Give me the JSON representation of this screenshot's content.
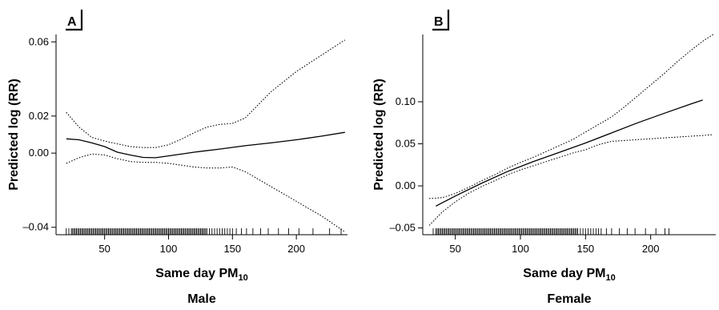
{
  "chart_data": [
    {
      "type": "line",
      "panel_label": "A",
      "caption": "Male",
      "xlabel": "Same day PM",
      "xlabel_sub": "10",
      "ylabel": "Predicted log (RR)",
      "xlim": [
        12,
        240
      ],
      "ylim": [
        -0.044,
        0.064
      ],
      "xticks": [
        50,
        100,
        150,
        200
      ],
      "yticks": [
        -0.04,
        0.0,
        0.02,
        0.06
      ],
      "ytick_labels": [
        "–0.04",
        "0.00",
        "0.02",
        "0.06"
      ],
      "series": [
        {
          "role": "estimate",
          "style": "solid",
          "x": [
            20,
            30,
            40,
            50,
            60,
            70,
            80,
            90,
            100,
            120,
            140,
            160,
            180,
            200,
            220,
            238
          ],
          "y": [
            0.0077,
            0.0072,
            0.0055,
            0.0035,
            0.0005,
            -0.001,
            -0.0023,
            -0.0025,
            -0.0015,
            0.0005,
            0.0022,
            0.004,
            0.0055,
            0.0072,
            0.0092,
            0.0112
          ]
        },
        {
          "role": "upper-bound",
          "style": "dotted",
          "x": [
            20,
            30,
            40,
            50,
            60,
            70,
            80,
            90,
            100,
            110,
            120,
            130,
            140,
            150,
            160,
            180,
            200,
            220,
            238
          ],
          "y": [
            0.022,
            0.014,
            0.0085,
            0.0065,
            0.005,
            0.0035,
            0.003,
            0.003,
            0.0045,
            0.0075,
            0.011,
            0.014,
            0.0155,
            0.016,
            0.019,
            0.033,
            0.044,
            0.053,
            0.061
          ]
        },
        {
          "role": "lower-bound",
          "style": "dotted",
          "x": [
            20,
            30,
            40,
            50,
            60,
            70,
            80,
            90,
            100,
            110,
            120,
            130,
            140,
            150,
            160,
            180,
            200,
            220,
            238
          ],
          "y": [
            -0.0055,
            -0.0025,
            -0.0005,
            -0.001,
            -0.003,
            -0.0045,
            -0.005,
            -0.005,
            -0.0055,
            -0.0065,
            -0.0075,
            -0.008,
            -0.008,
            -0.0075,
            -0.01,
            -0.018,
            -0.026,
            -0.034,
            -0.0425
          ]
        }
      ],
      "rug_x": [
        20,
        22,
        24,
        25,
        26,
        27,
        28,
        29,
        30,
        31,
        32,
        33,
        34,
        35,
        36,
        37,
        38,
        39,
        40,
        41,
        42,
        43,
        44,
        45,
        46,
        47,
        48,
        49,
        50,
        51,
        52,
        53,
        54,
        55,
        56,
        57,
        58,
        59,
        60,
        61,
        62,
        63,
        64,
        65,
        66,
        67,
        68,
        69,
        70,
        71,
        72,
        73,
        74,
        75,
        76,
        77,
        78,
        79,
        80,
        81,
        82,
        83,
        84,
        85,
        86,
        87,
        88,
        89,
        90,
        91,
        92,
        93,
        94,
        95,
        96,
        97,
        98,
        99,
        100,
        101,
        102,
        103,
        104,
        105,
        106,
        107,
        108,
        109,
        110,
        111,
        112,
        113,
        114,
        115,
        116,
        117,
        118,
        119,
        120,
        121,
        122,
        123,
        124,
        125,
        126,
        127,
        128,
        129,
        130,
        132,
        134,
        136,
        138,
        140,
        142,
        144,
        146,
        148,
        150,
        153,
        157,
        161,
        166,
        172,
        178,
        186,
        194,
        202,
        213,
        226,
        235
      ]
    },
    {
      "type": "line",
      "panel_label": "B",
      "caption": "Female",
      "xlabel": "Same day PM",
      "xlabel_sub": "10",
      "ylabel": "Predicted log (RR)",
      "xlim": [
        25,
        250
      ],
      "ylim": [
        -0.058,
        0.18
      ],
      "xticks": [
        50,
        100,
        150,
        200
      ],
      "yticks": [
        -0.05,
        0.0,
        0.05,
        0.1
      ],
      "ytick_labels": [
        "–0.05",
        "0.00",
        "0.05",
        "0.10"
      ],
      "series": [
        {
          "role": "estimate",
          "style": "solid",
          "x": [
            35,
            50,
            70,
            90,
            110,
            130,
            150,
            170,
            190,
            210,
            230,
            240
          ],
          "y": [
            -0.024,
            -0.012,
            0.003,
            0.017,
            0.029,
            0.04,
            0.051,
            0.063,
            0.075,
            0.086,
            0.097,
            0.102
          ]
        },
        {
          "role": "upper-bound",
          "style": "dotted",
          "x": [
            30,
            40,
            50,
            60,
            70,
            80,
            90,
            100,
            110,
            120,
            130,
            140,
            150,
            160,
            170,
            180,
            190,
            200,
            210,
            220,
            230,
            240,
            248
          ],
          "y": [
            -0.015,
            -0.014,
            -0.009,
            -0.002,
            0.006,
            0.013,
            0.021,
            0.028,
            0.034,
            0.041,
            0.048,
            0.055,
            0.064,
            0.073,
            0.082,
            0.094,
            0.107,
            0.12,
            0.133,
            0.147,
            0.16,
            0.172,
            0.18
          ]
        },
        {
          "role": "lower-bound",
          "style": "dotted",
          "x": [
            30,
            40,
            50,
            60,
            70,
            80,
            90,
            100,
            110,
            120,
            130,
            140,
            150,
            160,
            170,
            180,
            190,
            200,
            210,
            220,
            230,
            240,
            248
          ],
          "y": [
            -0.047,
            -0.031,
            -0.019,
            -0.009,
            -0.001,
            0.006,
            0.013,
            0.019,
            0.024,
            0.029,
            0.034,
            0.039,
            0.043,
            0.049,
            0.053,
            0.054,
            0.055,
            0.056,
            0.057,
            0.058,
            0.059,
            0.06,
            0.061
          ]
        }
      ],
      "rug_x": [
        33,
        35,
        36,
        37,
        38,
        39,
        40,
        41,
        42,
        43,
        44,
        45,
        46,
        47,
        48,
        49,
        50,
        51,
        52,
        53,
        54,
        55,
        56,
        57,
        58,
        59,
        60,
        61,
        62,
        63,
        64,
        65,
        66,
        67,
        68,
        69,
        70,
        71,
        72,
        73,
        74,
        75,
        76,
        77,
        78,
        79,
        80,
        81,
        82,
        83,
        84,
        85,
        86,
        87,
        88,
        89,
        90,
        91,
        92,
        93,
        94,
        95,
        96,
        97,
        98,
        99,
        100,
        101,
        102,
        103,
        104,
        105,
        106,
        107,
        108,
        109,
        110,
        111,
        112,
        113,
        114,
        115,
        116,
        117,
        118,
        119,
        120,
        121,
        122,
        123,
        124,
        125,
        126,
        127,
        128,
        129,
        130,
        131,
        132,
        133,
        134,
        135,
        136,
        137,
        138,
        139,
        140,
        141,
        142,
        143,
        144,
        146,
        148,
        150,
        152,
        154,
        156,
        158,
        160,
        162,
        166,
        170,
        176,
        182,
        188,
        196,
        204,
        211,
        214
      ]
    }
  ]
}
